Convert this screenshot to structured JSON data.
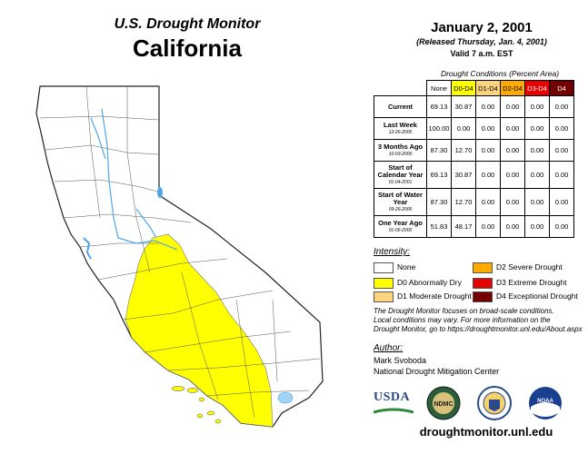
{
  "header": {
    "monitor": "U.S. Drought Monitor",
    "state": "California"
  },
  "dates": {
    "main": "January 2, 2001",
    "released": "(Released Thursday, Jan. 4, 2001)",
    "valid": "Valid 7 a.m. EST"
  },
  "table": {
    "caption": "Drought Conditions (Percent Area)",
    "columns": [
      "None",
      "D0-D4",
      "D1-D4",
      "D2-D4",
      "D3-D4",
      "D4"
    ],
    "column_colors": [
      "#ffffff",
      "#ffff00",
      "#fcd37f",
      "#ffaa00",
      "#e60000",
      "#730000"
    ],
    "rows": [
      {
        "label": "Current",
        "date": "",
        "values": [
          "69.13",
          "30.87",
          "0.00",
          "0.00",
          "0.00",
          "0.00"
        ]
      },
      {
        "label": "Last Week",
        "date": "12-26-2000",
        "values": [
          "100.00",
          "0.00",
          "0.00",
          "0.00",
          "0.00",
          "0.00"
        ]
      },
      {
        "label": "3 Months Ago",
        "date": "10-03-2000",
        "values": [
          "87.30",
          "12.70",
          "0.00",
          "0.00",
          "0.00",
          "0.00"
        ]
      },
      {
        "label": "Start of Calendar Year",
        "date": "01-04-2001",
        "values": [
          "69.13",
          "30.87",
          "0.00",
          "0.00",
          "0.00",
          "0.00"
        ]
      },
      {
        "label": "Start of Water Year",
        "date": "09-26-2000",
        "values": [
          "87.30",
          "12.70",
          "0.00",
          "0.00",
          "0.00",
          "0.00"
        ]
      },
      {
        "label": "One Year Ago",
        "date": "01-06-2000",
        "values": [
          "51.83",
          "48.17",
          "0.00",
          "0.00",
          "0.00",
          "0.00"
        ]
      }
    ]
  },
  "legend": {
    "label": "Intensity:",
    "items": [
      {
        "text": "None",
        "color": "#ffffff"
      },
      {
        "text": "D0 Abnormally Dry",
        "color": "#ffff00"
      },
      {
        "text": "D1 Moderate Drought",
        "color": "#fcd37f"
      },
      {
        "text": "D2 Severe Drought",
        "color": "#ffaa00"
      },
      {
        "text": "D3 Extreme Drought",
        "color": "#e60000"
      },
      {
        "text": "D4 Exceptional Drought",
        "color": "#730000"
      }
    ]
  },
  "note": {
    "line1": "The Drought Monitor focuses on broad-scale conditions.",
    "line2": "Local conditions may vary. For more information on the",
    "line3": "Drought Monitor, go to https://droughtmonitor.unl.edu/About.aspx"
  },
  "author": {
    "label": "Author:",
    "name": "Mark Svoboda",
    "org": "National Drought Mitigation Center"
  },
  "logos": {
    "usda": "USDA",
    "ndmc": "NDMC",
    "noaa": "NOAA"
  },
  "footer": {
    "url": "droughtmonitor.unl.edu"
  },
  "map": {
    "state_fill": "#ffffff",
    "drought_fill": "#ffff00",
    "water_color": "#4da6e8"
  }
}
